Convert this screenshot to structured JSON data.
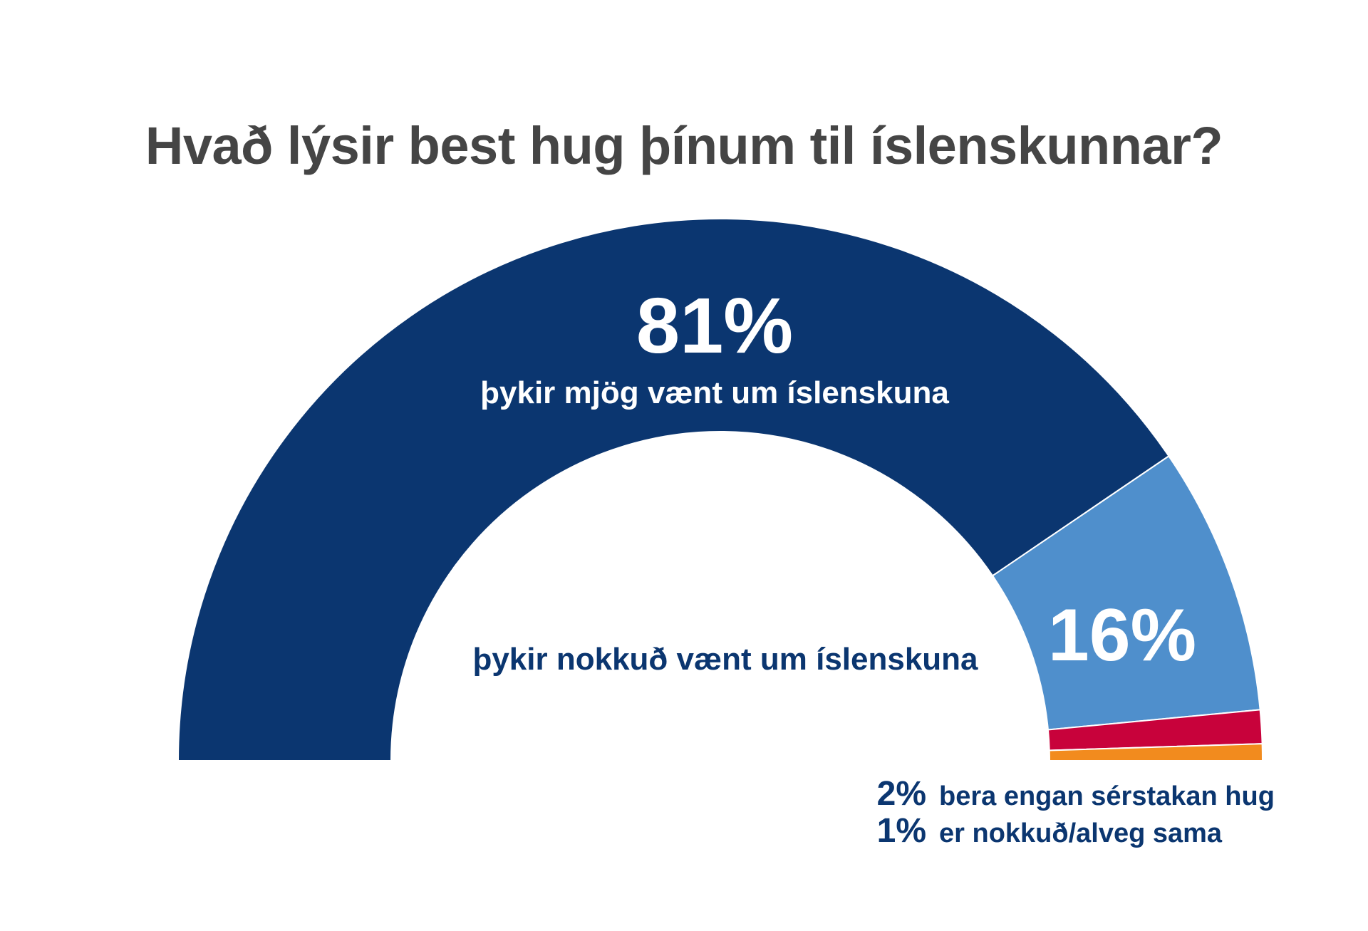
{
  "chart_data": {
    "type": "pie",
    "variant": "half-donut",
    "title": "Hvað lýsir best hug þínum til íslenskunnar?",
    "slices": [
      {
        "label": "þykir mjög vænt um íslenskuna",
        "value": 81,
        "value_label": "81%",
        "color": "#0b3670"
      },
      {
        "label": "þykir nokkuð vænt um íslenskuna",
        "value": 16,
        "value_label": "16%",
        "color": "#4f8fcc"
      },
      {
        "label": "bera engan sérstakan hug",
        "value": 2,
        "value_label": "2%",
        "color": "#c8023b"
      },
      {
        "label": "er nokkuð/alveg sama",
        "value": 1,
        "value_label": "1%",
        "color": "#f28b1e"
      }
    ],
    "label_color": "#0b3670"
  }
}
